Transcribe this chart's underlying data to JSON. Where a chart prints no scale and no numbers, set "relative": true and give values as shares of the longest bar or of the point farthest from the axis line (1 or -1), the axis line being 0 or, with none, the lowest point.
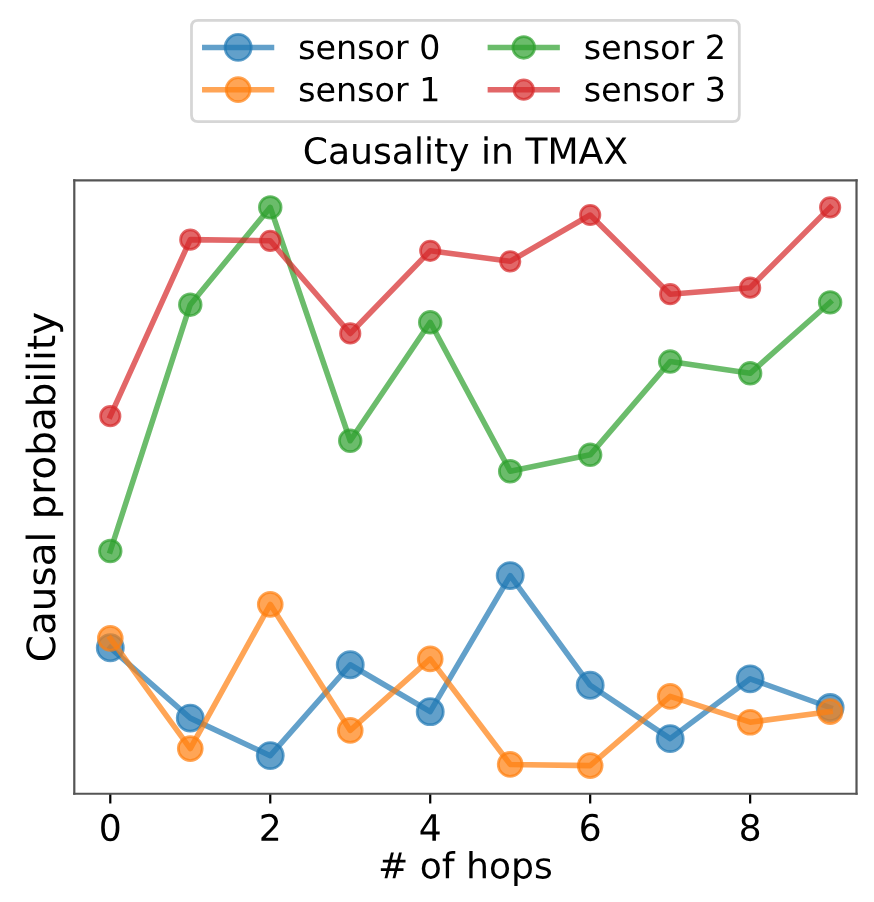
{
  "chart_data": {
    "type": "line",
    "title": "Causality in TMAX",
    "xlabel": "# of hops",
    "ylabel": "Causal probability",
    "x": [
      0,
      1,
      2,
      3,
      4,
      5,
      6,
      7,
      8,
      9
    ],
    "xlim": [
      -0.45,
      9.33
    ],
    "xticks": [
      0,
      2,
      4,
      6,
      8
    ],
    "relative": true,
    "series": [
      {
        "name": "sensor 0",
        "color": "#1f77b4",
        "values": [
          0.249,
          0.129,
          0.065,
          0.22,
          0.14,
          0.372,
          0.185,
          0.094,
          0.196,
          0.147
        ]
      },
      {
        "name": "sensor 1",
        "color": "#ff7f0e",
        "values": [
          0.265,
          0.077,
          0.323,
          0.108,
          0.23,
          0.05,
          0.048,
          0.166,
          0.122,
          0.14
        ]
      },
      {
        "name": "sensor 2",
        "color": "#2ca02c",
        "values": [
          0.414,
          0.834,
          1.0,
          0.602,
          0.804,
          0.55,
          0.578,
          0.737,
          0.717,
          0.838
        ]
      },
      {
        "name": "sensor 3",
        "color": "#d62728",
        "values": [
          0.644,
          0.945,
          0.943,
          0.785,
          0.926,
          0.908,
          0.987,
          0.852,
          0.863,
          1.0
        ]
      }
    ],
    "legend": "top",
    "grid": false,
    "marker": "circle",
    "line_style": "solid"
  }
}
